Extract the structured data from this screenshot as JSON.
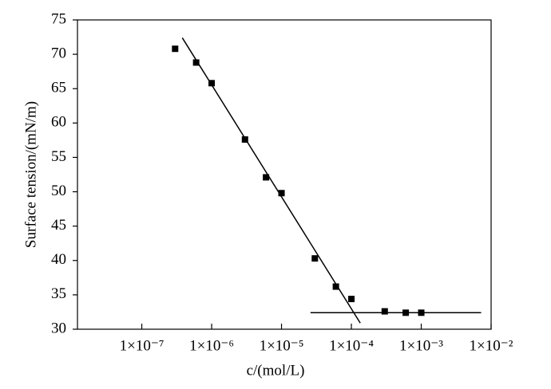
{
  "chart_data": {
    "type": "scatter",
    "xlabel": "c/(mol/L)",
    "ylabel": "Surface tension/(mN/m)",
    "xscale": "log",
    "xlim": [
      1.2e-08,
      0.01
    ],
    "ylim": [
      30,
      75
    ],
    "xticks": [
      {
        "value": 1e-07,
        "label": "1×10⁻⁷"
      },
      {
        "value": 1e-06,
        "label": "1×10⁻⁶"
      },
      {
        "value": 1e-05,
        "label": "1×10⁻⁵"
      },
      {
        "value": 0.0001,
        "label": "1×10⁻⁴"
      },
      {
        "value": 0.001,
        "label": "1×10⁻³"
      },
      {
        "value": 0.01,
        "label": "1×10⁻²"
      }
    ],
    "yticks": [
      30,
      35,
      40,
      45,
      50,
      55,
      60,
      65,
      70,
      75
    ],
    "series": [
      {
        "color": "#000000",
        "marker": "square",
        "x": [
          3e-07,
          6e-07,
          1e-06,
          3e-06,
          6e-06,
          1e-05,
          3e-05,
          6e-05,
          0.0001,
          0.0003,
          0.0006,
          0.001
        ],
        "values": [
          70.8,
          68.8,
          65.8,
          57.6,
          52.1,
          49.8,
          40.3,
          36.2,
          34.4,
          32.6,
          32.4,
          32.4
        ]
      }
    ],
    "lines": [
      {
        "color": "#000000",
        "x": [
          3.8e-07,
          0.000134
        ],
        "values": [
          72.4,
          30.9
        ]
      },
      {
        "color": "#000000",
        "x": [
          2.6e-05,
          0.0072
        ],
        "values": [
          32.4,
          32.4
        ]
      }
    ]
  }
}
